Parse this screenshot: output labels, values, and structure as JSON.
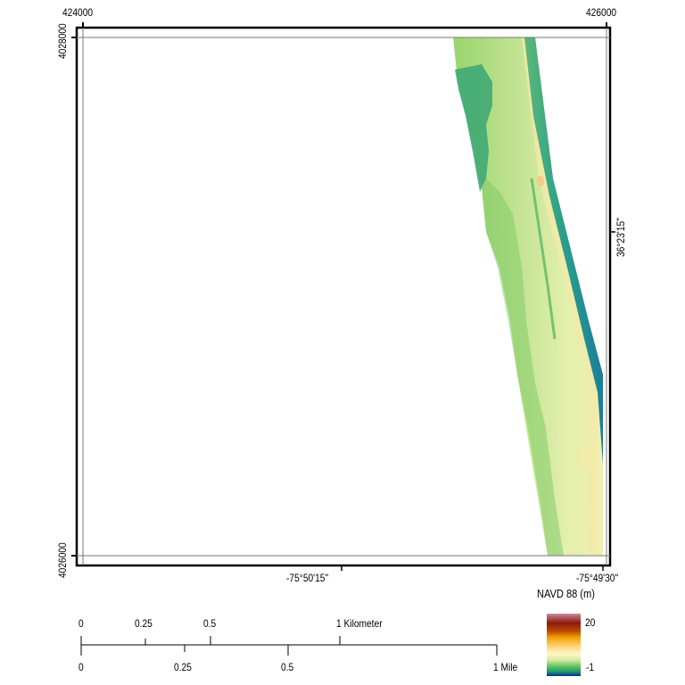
{
  "map": {
    "projected_ticks": {
      "x_left": "424000",
      "x_right": "426000",
      "y_top": "4028000",
      "y_bottom": "4026000"
    },
    "geographic_ticks": {
      "lon_middle": "-75°50'15\"",
      "lon_right": "-75°49'30\"",
      "lat_right": "36°23'15\""
    },
    "raster_colors": {
      "ocean": "#1f8f9a",
      "nearshore": "#3aa87e",
      "marsh": "#3fa86a",
      "land_low": "#8fcf6a",
      "land_mid": "#cfe79a",
      "dune": "#f3eaa8",
      "peak": "#f5c98a"
    }
  },
  "legend": {
    "title": "NAVD 88 (m)",
    "max_label": "20",
    "min_label": "-1",
    "ramp_colors": [
      "#c98a9a",
      "#8b1a10",
      "#b94a00",
      "#f0a000",
      "#ffd27a",
      "#fff8c8",
      "#cfe8a0",
      "#5bbf5b",
      "#1a9a70",
      "#0a2a8a"
    ]
  },
  "scale_bar": {
    "km_labels": [
      "0",
      "0.25",
      "0.5",
      "1 Kilometer"
    ],
    "mile_labels": [
      "0",
      "0.25",
      "0.5",
      "1 Mile"
    ]
  }
}
